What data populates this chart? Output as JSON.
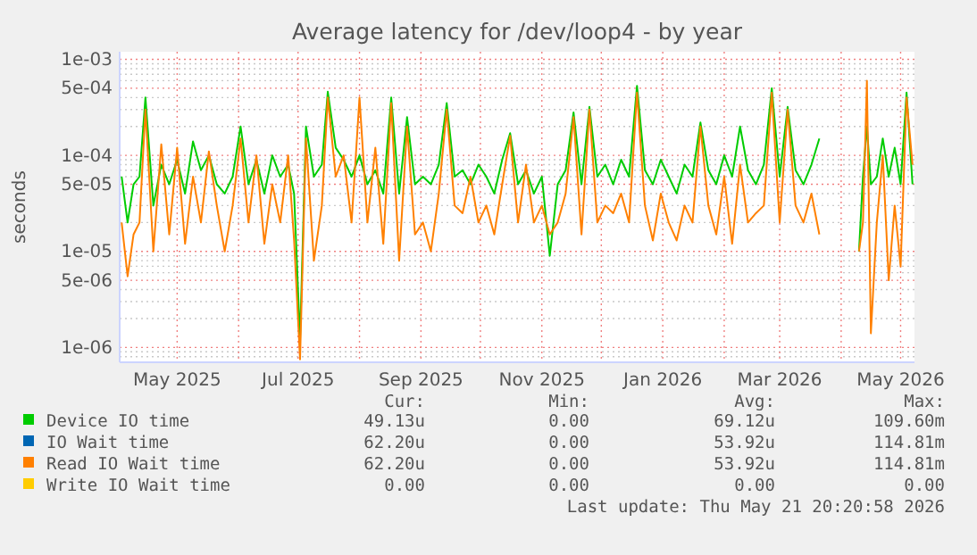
{
  "chart_data": {
    "type": "line",
    "title": "Average latency for /dev/loop4 - by year",
    "ylabel": "seconds",
    "log": true,
    "grid": true,
    "legend": "bottom",
    "line_style": "solid",
    "marker": "none",
    "xlim": [
      "2025-04-02",
      "2026-05-08"
    ],
    "xticks": [
      {
        "value": "2025-05-01",
        "label": "May 2025"
      },
      {
        "value": "2025-06-01",
        "label": null
      },
      {
        "value": "2025-07-01",
        "label": "Jul 2025"
      },
      {
        "value": "2025-08-01",
        "label": null
      },
      {
        "value": "2025-09-01",
        "label": "Sep 2025"
      },
      {
        "value": "2025-10-01",
        "label": null
      },
      {
        "value": "2025-11-01",
        "label": "Nov 2025"
      },
      {
        "value": "2025-12-01",
        "label": null
      },
      {
        "value": "2026-01-01",
        "label": "Jan 2026"
      },
      {
        "value": "2026-02-01",
        "label": null
      },
      {
        "value": "2026-03-01",
        "label": "Mar 2026"
      },
      {
        "value": "2026-04-01",
        "label": null
      },
      {
        "value": "2026-05-01",
        "label": "May 2026"
      }
    ],
    "ylim": [
      7e-07,
      0.0012
    ],
    "yticks": [
      {
        "value": 8e-07,
        "label": null
      },
      {
        "value": 9e-07,
        "label": null
      },
      {
        "value": 1e-06,
        "label": "1e-06"
      },
      {
        "value": 2e-06,
        "label": null
      },
      {
        "value": 3e-06,
        "label": null
      },
      {
        "value": 4e-06,
        "label": null
      },
      {
        "value": 5e-06,
        "label": "5e-06"
      },
      {
        "value": 6e-06,
        "label": null
      },
      {
        "value": 7e-06,
        "label": null
      },
      {
        "value": 8e-06,
        "label": null
      },
      {
        "value": 9e-06,
        "label": null
      },
      {
        "value": 1e-05,
        "label": "1e-05"
      },
      {
        "value": 2e-05,
        "label": null
      },
      {
        "value": 3e-05,
        "label": null
      },
      {
        "value": 4e-05,
        "label": null
      },
      {
        "value": 5e-05,
        "label": "5e-05"
      },
      {
        "value": 6e-05,
        "label": null
      },
      {
        "value": 7e-05,
        "label": null
      },
      {
        "value": 8e-05,
        "label": null
      },
      {
        "value": 9e-05,
        "label": null
      },
      {
        "value": 0.0001,
        "label": "1e-04"
      },
      {
        "value": 0.0002,
        "label": null
      },
      {
        "value": 0.0003,
        "label": null
      },
      {
        "value": 0.0004,
        "label": null
      },
      {
        "value": 0.0005,
        "label": "5e-04"
      },
      {
        "value": 0.0006,
        "label": null
      },
      {
        "value": 0.0007,
        "label": null
      },
      {
        "value": 0.0008,
        "label": null
      },
      {
        "value": 0.0009,
        "label": null
      },
      {
        "value": 0.001,
        "label": "1e-03"
      }
    ],
    "x": [
      "2025-04-03",
      "2025-04-06",
      "2025-04-09",
      "2025-04-12",
      "2025-04-15",
      "2025-04-19",
      "2025-04-23",
      "2025-04-27",
      "2025-05-01",
      "2025-05-05",
      "2025-05-09",
      "2025-05-13",
      "2025-05-17",
      "2025-05-21",
      "2025-05-25",
      "2025-05-29",
      "2025-06-02",
      "2025-06-06",
      "2025-06-10",
      "2025-06-14",
      "2025-06-18",
      "2025-06-22",
      "2025-06-26",
      "2025-06-29",
      "2025-07-02",
      "2025-07-05",
      "2025-07-09",
      "2025-07-13",
      "2025-07-16",
      "2025-07-20",
      "2025-07-24",
      "2025-07-28",
      "2025-08-01",
      "2025-08-05",
      "2025-08-09",
      "2025-08-13",
      "2025-08-17",
      "2025-08-21",
      "2025-08-25",
      "2025-08-29",
      "2025-09-02",
      "2025-09-06",
      "2025-09-10",
      "2025-09-14",
      "2025-09-18",
      "2025-09-22",
      "2025-09-26",
      "2025-09-30",
      "2025-10-04",
      "2025-10-08",
      "2025-10-12",
      "2025-10-16",
      "2025-10-20",
      "2025-10-24",
      "2025-10-28",
      "2025-11-01",
      "2025-11-05",
      "2025-11-09",
      "2025-11-13",
      "2025-11-17",
      "2025-11-21",
      "2025-11-25",
      "2025-11-29",
      "2025-12-03",
      "2025-12-07",
      "2025-12-11",
      "2025-12-15",
      "2025-12-19",
      "2025-12-23",
      "2025-12-27",
      "2025-12-31",
      "2026-01-04",
      "2026-01-08",
      "2026-01-12",
      "2026-01-16",
      "2026-01-20",
      "2026-01-24",
      "2026-01-28",
      "2026-02-01",
      "2026-02-05",
      "2026-02-09",
      "2026-02-13",
      "2026-02-17",
      "2026-02-21",
      "2026-02-25",
      "2026-03-01",
      "2026-03-05",
      "2026-03-09",
      "2026-03-13",
      "2026-03-17",
      "2026-03-21",
      "2026-03-22",
      "2026-04-10",
      "2026-04-12",
      "2026-04-14",
      "2026-04-16",
      "2026-04-19",
      "2026-04-22",
      "2026-04-25",
      "2026-04-28",
      "2026-05-01",
      "2026-05-04",
      "2026-05-07"
    ],
    "series": [
      {
        "name": "Device IO time",
        "color": "#00cc00",
        "values": [
          6e-05,
          2e-05,
          5e-05,
          6e-05,
          0.0004,
          3e-05,
          8e-05,
          5e-05,
          9e-05,
          4e-05,
          0.00014,
          7e-05,
          0.0001,
          5e-05,
          4e-05,
          6e-05,
          0.0002,
          5e-05,
          9e-05,
          4e-05,
          0.0001,
          6e-05,
          8e-05,
          4e-05,
          1.2e-06,
          0.0002,
          6e-05,
          8e-05,
          0.00046,
          0.00012,
          9e-05,
          6e-05,
          0.0001,
          5e-05,
          7e-05,
          4e-05,
          0.0004,
          4e-05,
          0.00025,
          5e-05,
          6e-05,
          5e-05,
          8e-05,
          0.00035,
          6e-05,
          7e-05,
          5e-05,
          8e-05,
          6e-05,
          4e-05,
          9e-05,
          0.00017,
          5e-05,
          7e-05,
          4e-05,
          6e-05,
          9e-06,
          5e-05,
          7e-05,
          0.00028,
          5e-05,
          0.00032,
          6e-05,
          8e-05,
          5e-05,
          9e-05,
          6e-05,
          0.00053,
          7e-05,
          5e-05,
          9e-05,
          6e-05,
          4e-05,
          8e-05,
          6e-05,
          0.00022,
          7e-05,
          5e-05,
          0.0001,
          6e-05,
          0.0002,
          7e-05,
          5e-05,
          8e-05,
          0.0005,
          6e-05,
          0.00032,
          7e-05,
          5e-05,
          8e-05,
          0.00015,
          null,
          1e-05,
          6e-05,
          0.0002,
          5e-05,
          6e-05,
          0.00015,
          6e-05,
          0.00012,
          5e-05,
          0.00045,
          5e-05
        ]
      },
      {
        "name": "IO Wait time",
        "color": "#0066b3",
        "values": [
          null,
          null,
          null,
          null,
          null,
          null,
          null,
          null,
          null,
          null,
          null,
          null,
          null,
          null,
          null,
          null,
          null,
          null,
          null,
          null,
          null,
          null,
          null,
          null,
          null,
          null,
          null,
          null,
          null,
          null,
          null,
          null,
          null,
          null,
          null,
          null,
          null,
          null,
          null,
          null,
          null,
          null,
          null,
          null,
          null,
          null,
          null,
          null,
          null,
          null,
          null,
          null,
          null,
          null,
          null,
          null,
          null,
          null,
          null,
          null,
          null,
          null,
          null,
          null,
          null,
          null,
          null,
          null,
          null,
          null,
          null,
          null,
          null,
          null,
          null,
          null,
          null,
          null,
          null,
          null,
          null,
          null,
          null,
          null,
          null,
          null,
          null,
          null,
          null,
          null,
          null,
          null,
          null,
          null,
          null,
          null,
          null,
          null,
          null,
          null,
          null,
          null,
          null
        ]
      },
      {
        "name": "Read IO Wait time",
        "color": "#ff8000",
        "values": [
          2e-05,
          5.5e-06,
          1.5e-05,
          2e-05,
          0.0003,
          1e-05,
          0.00013,
          1.5e-05,
          0.00012,
          1.2e-05,
          6e-05,
          2e-05,
          0.00011,
          3e-05,
          1e-05,
          3e-05,
          0.00015,
          2e-05,
          0.0001,
          1.2e-05,
          5e-05,
          2e-05,
          0.0001,
          1.3e-05,
          7.5e-07,
          0.00015,
          8e-06,
          3e-05,
          0.0004,
          6e-05,
          0.0001,
          2e-05,
          0.0004,
          2e-05,
          0.00012,
          1.2e-05,
          0.00035,
          8e-06,
          0.0002,
          1.5e-05,
          2e-05,
          1e-05,
          4e-05,
          0.0003,
          3e-05,
          2.5e-05,
          6e-05,
          2e-05,
          3e-05,
          1.5e-05,
          5e-05,
          0.00016,
          2e-05,
          8e-05,
          2e-05,
          3e-05,
          1.5e-05,
          2e-05,
          4e-05,
          0.00025,
          1.5e-05,
          0.0003,
          2e-05,
          3e-05,
          2.5e-05,
          4e-05,
          2e-05,
          0.00045,
          3e-05,
          1.3e-05,
          4e-05,
          2e-05,
          1.3e-05,
          3e-05,
          2e-05,
          0.0002,
          3e-05,
          1.5e-05,
          6e-05,
          1.2e-05,
          8e-05,
          2e-05,
          2.5e-05,
          3e-05,
          0.00045,
          2e-05,
          0.0003,
          3e-05,
          2e-05,
          4e-05,
          1.5e-05,
          null,
          1e-05,
          2e-05,
          0.0006,
          1.4e-06,
          2e-05,
          0.0001,
          5e-06,
          3e-05,
          7e-06,
          0.0004,
          8e-05
        ]
      },
      {
        "name": "Write IO Wait time",
        "color": "#ffcc00",
        "values": [
          null,
          null,
          null,
          null,
          null,
          null,
          null,
          null,
          null,
          null,
          null,
          null,
          null,
          null,
          null,
          null,
          null,
          null,
          null,
          null,
          null,
          null,
          null,
          null,
          null,
          null,
          null,
          null,
          null,
          null,
          null,
          null,
          null,
          null,
          null,
          null,
          null,
          null,
          null,
          null,
          null,
          null,
          null,
          null,
          null,
          null,
          null,
          null,
          null,
          null,
          null,
          null,
          null,
          null,
          null,
          null,
          null,
          null,
          null,
          null,
          null,
          null,
          null,
          null,
          null,
          null,
          null,
          null,
          null,
          null,
          null,
          null,
          null,
          null,
          null,
          null,
          null,
          null,
          null,
          null,
          null,
          null,
          null,
          null,
          null,
          null,
          null,
          null,
          null,
          null,
          null,
          null,
          null,
          null,
          null,
          null,
          null,
          null,
          null,
          null,
          null,
          null,
          null
        ]
      }
    ],
    "annotations": [
      "Cur:",
      "Min:",
      "Avg:",
      "Max:",
      "49.13u",
      "0.00",
      "69.12u",
      "109.60m",
      "62.20u",
      "0.00",
      "53.92u",
      "114.81m",
      "62.20u",
      "0.00",
      "53.92u",
      "114.81m",
      "0.00",
      "0.00",
      "0.00",
      "0.00",
      "Last update: Thu May 21 20:20:58 2026"
    ]
  }
}
